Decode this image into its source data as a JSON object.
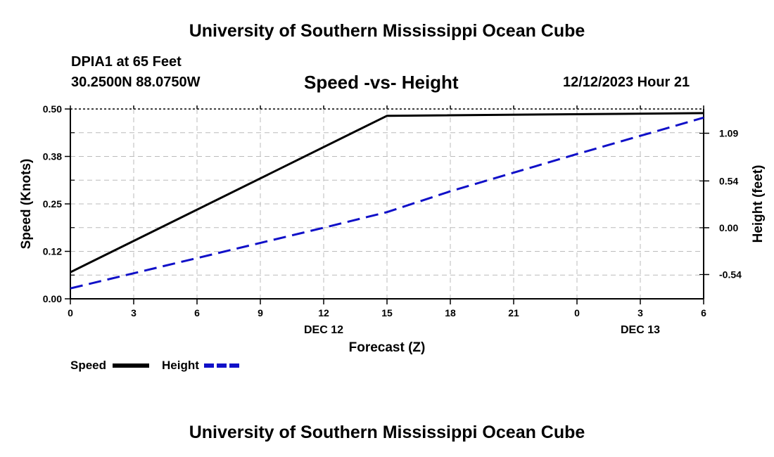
{
  "header": {
    "title": "University of Southern Mississippi Ocean Cube",
    "station_name": "DPIA1 at 65 Feet",
    "station_coords": "30.2500N  88.0750W",
    "chart_title": "Speed -vs- Height",
    "date": "12/12/2023 Hour 21"
  },
  "footer": {
    "title": "University of Southern Mississippi Ocean Cube"
  },
  "colors": {
    "speed": "#000000",
    "height": "#1010c8",
    "grid": "#bbbbbb"
  },
  "chart_data": {
    "type": "line",
    "title": "Speed -vs- Height",
    "xlabel": "Forecast (Z)",
    "ylabel_left": "Speed (Knots)",
    "ylabel_right": "Height (feet)",
    "x_ticks": [
      "0",
      "3",
      "6",
      "9",
      "12",
      "15",
      "18",
      "21",
      "0",
      "3",
      "6"
    ],
    "day_labels": [
      {
        "label": "DEC 12",
        "tick_index": 4
      },
      {
        "label": "DEC 13",
        "tick_index": 9
      }
    ],
    "xlim": [
      0,
      30
    ],
    "y_left": {
      "ticks": [
        "0.00",
        "0.12",
        "0.25",
        "0.38",
        "0.50"
      ],
      "lim": [
        0,
        0.5
      ]
    },
    "y_right": {
      "ticks": [
        "-0.54",
        "0.00",
        "0.54",
        "1.09"
      ],
      "lim": [
        -0.82,
        1.37
      ]
    },
    "grid": true,
    "series": [
      {
        "name": "Speed",
        "axis": "left",
        "style": "solid",
        "x": [
          0,
          15,
          30
        ],
        "values": [
          0.07,
          0.482,
          0.489
        ]
      },
      {
        "name": "Height",
        "axis": "right",
        "style": "dashed",
        "x": [
          0,
          6,
          12,
          15,
          18,
          24,
          30
        ],
        "values": [
          -0.7,
          -0.35,
          0.0,
          0.18,
          0.42,
          0.85,
          1.27
        ]
      }
    ],
    "legend": [
      {
        "label": "Speed",
        "series": 0
      },
      {
        "label": "Height",
        "series": 1
      }
    ]
  }
}
